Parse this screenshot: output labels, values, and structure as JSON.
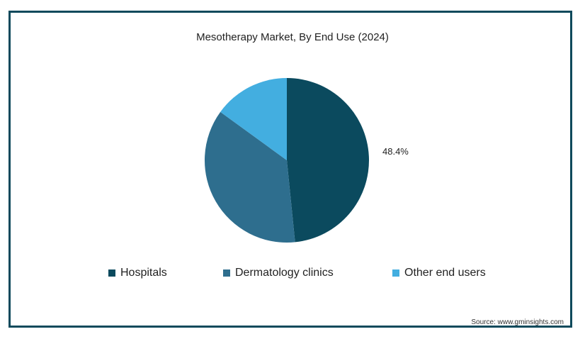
{
  "chart_data": {
    "type": "pie",
    "title": "Mesotherapy Market, By End Use (2024)",
    "slices": [
      {
        "label": "Hospitals",
        "value": 48.4,
        "color": "#0b4a5e",
        "data_label": "48.4%"
      },
      {
        "label": "Dermatology clinics",
        "value": 36.6,
        "color": "#2e6e8e",
        "data_label": ""
      },
      {
        "label": "Other end users",
        "value": 15.0,
        "color": "#43aee0",
        "data_label": ""
      }
    ],
    "legend_position": "bottom"
  },
  "source": "Source: www.gminsights.com"
}
